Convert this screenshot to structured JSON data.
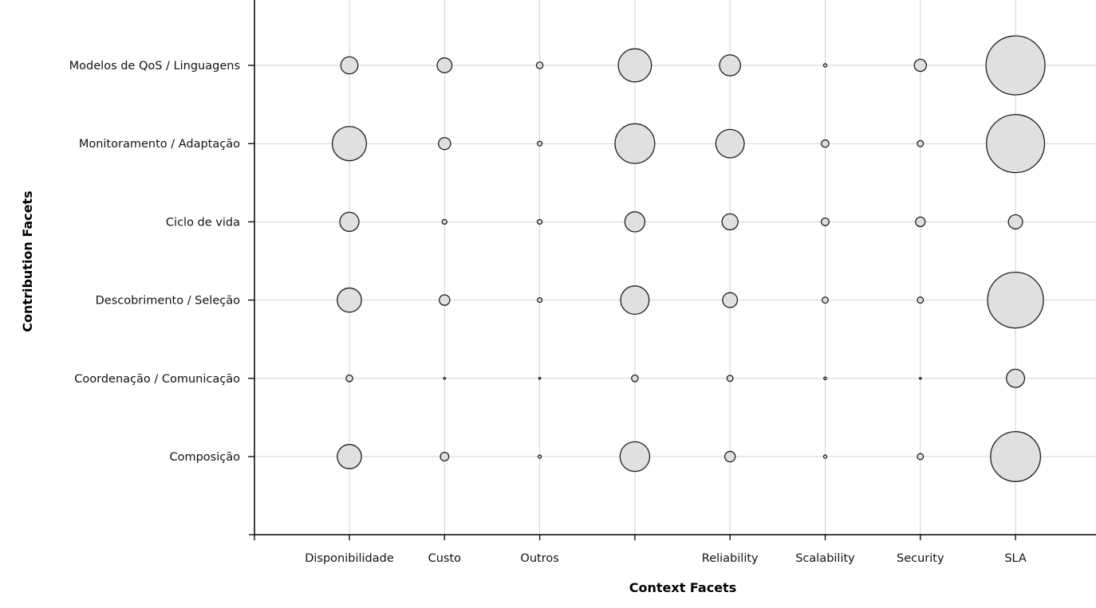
{
  "chart_data": {
    "type": "scatter",
    "subtype": "bubble",
    "title": "",
    "xlabel": "Context Facets",
    "ylabel": "Contribution Facets",
    "x_categories": [
      "Disponibilidade",
      "Custo",
      "Outros",
      "",
      "Reliability",
      "Scalability",
      "Security",
      "SLA"
    ],
    "y_categories": [
      "Composição",
      "Coordenação / Comunicação",
      "Descobrimento / Seleção",
      "Ciclo de vida",
      "Monitoramento / Adaptação",
      "Modelos de QoS / Linguagens"
    ],
    "grid": true,
    "legend": "none",
    "colors": {
      "bubble_fill": "#dedede",
      "bubble_edge": "#1e1e1e",
      "grid": "#d3d3d3",
      "axis": "#000000"
    },
    "size_scale_note": "bubble area proportional to value",
    "values": [
      [
        16,
        2,
        0.3,
        24,
        3,
        0.3,
        1,
        68
      ],
      [
        1.2,
        0.01,
        0.01,
        1.2,
        1,
        0.2,
        0.03,
        9
      ],
      [
        16,
        3,
        0.6,
        22,
        6,
        1,
        1,
        85
      ],
      [
        10,
        0.6,
        0.6,
        11,
        7,
        1.6,
        2.5,
        5.5
      ],
      [
        32,
        4,
        0.6,
        43,
        22,
        1.5,
        1,
        92
      ],
      [
        8,
        6,
        1.2,
        30,
        12,
        0.3,
        4,
        95
      ]
    ]
  }
}
